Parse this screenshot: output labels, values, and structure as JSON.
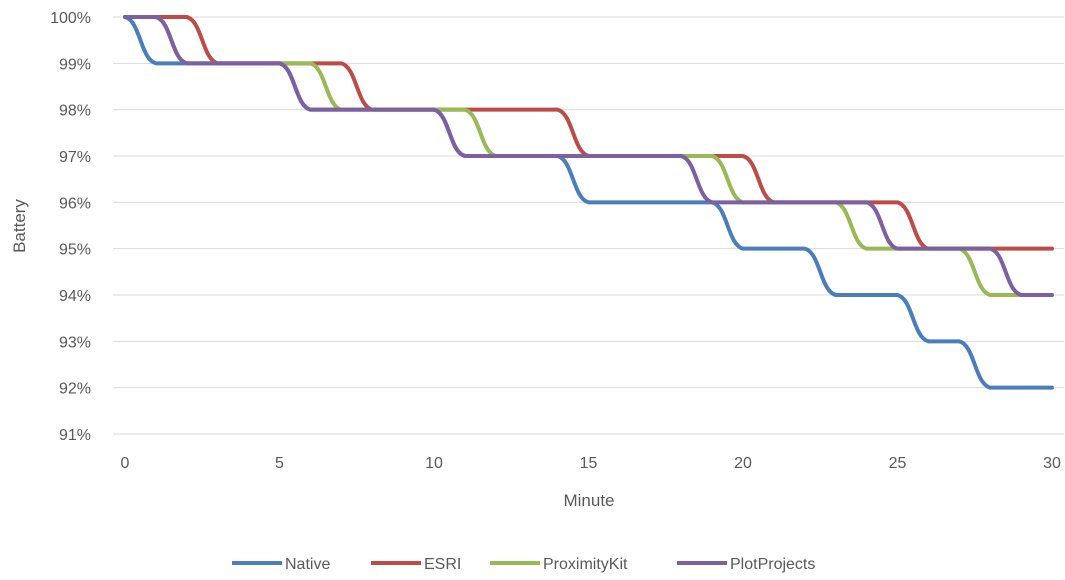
{
  "chart_data": {
    "type": "line",
    "xlabel": "Minute",
    "ylabel": "Battery",
    "xlim": [
      0,
      30
    ],
    "ylim": [
      91,
      100
    ],
    "xticks": [
      0,
      5,
      10,
      15,
      20,
      25,
      30
    ],
    "xtick_labels": [
      "0",
      "5",
      "10",
      "15",
      "20",
      "25",
      "30"
    ],
    "yticks": [
      91,
      92,
      93,
      94,
      95,
      96,
      97,
      98,
      99,
      100
    ],
    "ytick_labels": [
      "91%",
      "92%",
      "93%",
      "94%",
      "95%",
      "96%",
      "97%",
      "98%",
      "99%",
      "100%"
    ],
    "grid": "horizontal",
    "legend_position": "bottom",
    "x": [
      0,
      1,
      2,
      3,
      4,
      5,
      6,
      7,
      8,
      9,
      10,
      11,
      12,
      13,
      14,
      15,
      16,
      17,
      18,
      19,
      20,
      21,
      22,
      23,
      24,
      25,
      26,
      27,
      28,
      29,
      30
    ],
    "series": [
      {
        "name": "Native",
        "color": "#4a7ebb",
        "values": [
          100,
          99,
          99,
          99,
          99,
          99,
          98,
          98,
          98,
          98,
          98,
          97,
          97,
          97,
          97,
          96,
          96,
          96,
          96,
          96,
          95,
          95,
          95,
          94,
          94,
          94,
          93,
          93,
          92,
          92,
          92
        ]
      },
      {
        "name": "ESRI",
        "color": "#be4b48",
        "values": [
          100,
          100,
          100,
          99,
          99,
          99,
          99,
          99,
          98,
          98,
          98,
          98,
          98,
          98,
          98,
          97,
          97,
          97,
          97,
          97,
          97,
          96,
          96,
          96,
          96,
          96,
          95,
          95,
          95,
          95,
          95
        ]
      },
      {
        "name": "ProximityKit",
        "color": "#98b954",
        "values": [
          100,
          100,
          99,
          99,
          99,
          99,
          99,
          98,
          98,
          98,
          98,
          98,
          97,
          97,
          97,
          97,
          97,
          97,
          97,
          97,
          96,
          96,
          96,
          96,
          95,
          95,
          95,
          95,
          94,
          94,
          94
        ]
      },
      {
        "name": "PlotProjects",
        "color": "#7d60a0",
        "values": [
          100,
          100,
          99,
          99,
          99,
          99,
          98,
          98,
          98,
          98,
          98,
          97,
          97,
          97,
          97,
          97,
          97,
          97,
          97,
          96,
          96,
          96,
          96,
          96,
          96,
          95,
          95,
          95,
          95,
          94,
          94
        ]
      }
    ]
  }
}
